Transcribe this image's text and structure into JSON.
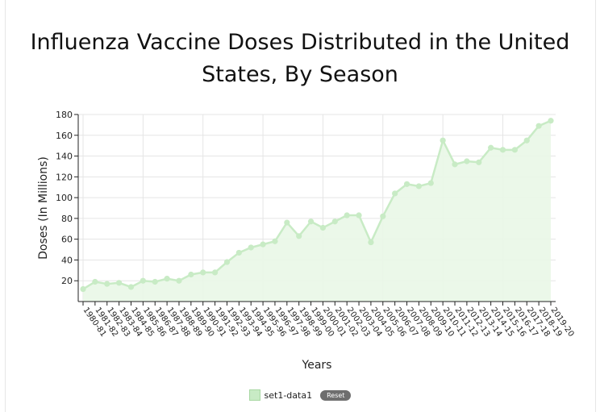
{
  "chart_data": {
    "type": "area",
    "title": "Influenza Vaccine Doses Distributed in the United States, By Season",
    "xlabel": "Years",
    "ylabel": "Doses (In Millions)",
    "ylim": [
      0,
      180
    ],
    "yticks": [
      20,
      40,
      60,
      80,
      100,
      120,
      140,
      160,
      180
    ],
    "grid": true,
    "legend_position": "bottom",
    "categories": [
      "1980-81",
      "1981-82",
      "1982-83",
      "1983-84",
      "1984-85",
      "1985-86",
      "1986-87",
      "1987-88",
      "1988-89",
      "1989-90",
      "1990-91",
      "1991-92",
      "1992-93",
      "1993-94",
      "1994-95",
      "1995-96",
      "1996-97",
      "1997-98",
      "1998-99",
      "1999-00",
      "2000-01",
      "2001-02",
      "2002-03",
      "2003-04",
      "2004-05",
      "2005-06",
      "2006-07",
      "2007-08",
      "2008-09",
      "2009-10",
      "2010-11",
      "2011-12",
      "2012-13",
      "2013-14",
      "2014-15",
      "2015-16",
      "2016-17",
      "2017-18",
      "2018-19",
      "2019-20"
    ],
    "series": [
      {
        "name": "set1-data1",
        "color": "#c8ebc5",
        "values": [
          12,
          19,
          17,
          18,
          14,
          20,
          19,
          22,
          20,
          26,
          28,
          28,
          38,
          47,
          52,
          55,
          58,
          76,
          63,
          77,
          71,
          77,
          83,
          83,
          57,
          82,
          104,
          113,
          111,
          114,
          155,
          132,
          135,
          134,
          148,
          146,
          146,
          155,
          169,
          174
        ]
      }
    ]
  },
  "legend": {
    "label": "set1-data1",
    "reset_label": "Reset"
  }
}
